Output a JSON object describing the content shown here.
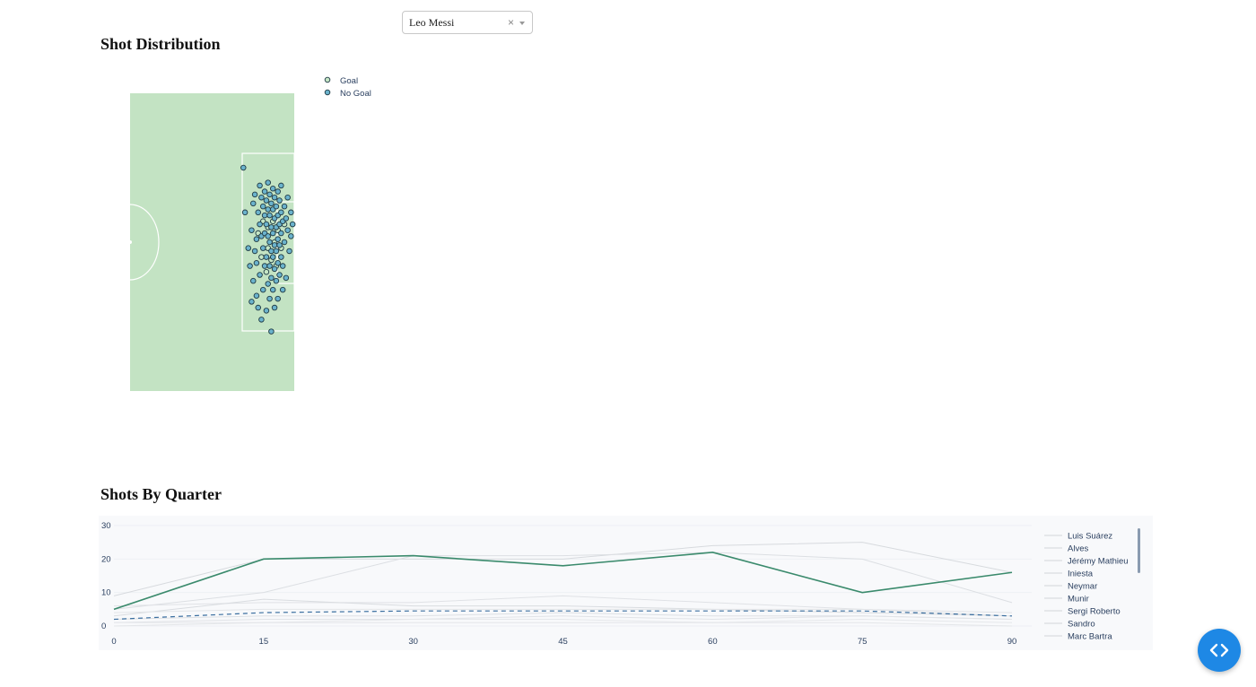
{
  "player_select": {
    "value": "Leo Messi",
    "clear_icon": "×"
  },
  "sections": {
    "shot_distribution_title": "Shot Distribution",
    "shots_by_quarter_title": "Shots By Quarter"
  },
  "colors": {
    "pitch": "#c3e3c3",
    "goal_marker": "#c5e6c5",
    "no_goal_marker": "#6bb3cd",
    "messi_line": "#3a8a6c",
    "dashed_line": "#3b6fa0",
    "plot_bg": "#f8f9fb"
  },
  "chart_data": [
    {
      "type": "scatter",
      "legend": [
        "Goal",
        "No Goal"
      ],
      "legend_position": "top-right",
      "series": [
        {
          "name": "Goal",
          "points": [
            [
              78,
              47
            ],
            [
              81,
              43
            ],
            [
              84,
              45
            ],
            [
              87,
              43
            ],
            [
              80,
              55
            ],
            [
              84,
              52
            ],
            [
              88,
              50
            ],
            [
              90,
              46
            ],
            [
              86,
              56
            ],
            [
              92,
              52
            ],
            [
              83,
              60
            ],
            [
              89,
              58
            ],
            [
              94,
              44
            ]
          ]
        },
        {
          "name": "No Goal",
          "points": [
            [
              69,
              25
            ],
            [
              70,
              40
            ],
            [
              72,
              52
            ],
            [
              73,
              58
            ],
            [
              74,
              46
            ],
            [
              74,
              70
            ],
            [
              75,
              37
            ],
            [
              75,
              63
            ],
            [
              76,
              34
            ],
            [
              76,
              53
            ],
            [
              77,
              49
            ],
            [
              77,
              57
            ],
            [
              77,
              68
            ],
            [
              78,
              40
            ],
            [
              78,
              72
            ],
            [
              79,
              31
            ],
            [
              79,
              44
            ],
            [
              79,
              61
            ],
            [
              80,
              35
            ],
            [
              80,
              48
            ],
            [
              80,
              76
            ],
            [
              81,
              38
            ],
            [
              81,
              52
            ],
            [
              81,
              66
            ],
            [
              82,
              33
            ],
            [
              82,
              41
            ],
            [
              82,
              47
            ],
            [
              82,
              58
            ],
            [
              83,
              36
            ],
            [
              83,
              44
            ],
            [
              83,
              55
            ],
            [
              83,
              73
            ],
            [
              84,
              30
            ],
            [
              84,
              39
            ],
            [
              84,
              48
            ],
            [
              84,
              64
            ],
            [
              85,
              34
            ],
            [
              85,
              41
            ],
            [
              85,
              50
            ],
            [
              85,
              58
            ],
            [
              85,
              69
            ],
            [
              86,
              37
            ],
            [
              86,
              45
            ],
            [
              86,
              53
            ],
            [
              86,
              62
            ],
            [
              86,
              80
            ],
            [
              87,
              32
            ],
            [
              87,
              39
            ],
            [
              87,
              47
            ],
            [
              87,
              55
            ],
            [
              87,
              66
            ],
            [
              88,
              35
            ],
            [
              88,
              42
            ],
            [
              88,
              51
            ],
            [
              88,
              59
            ],
            [
              88,
              72
            ],
            [
              89,
              38
            ],
            [
              89,
              45
            ],
            [
              89,
              53
            ],
            [
              89,
              63
            ],
            [
              90,
              33
            ],
            [
              90,
              41
            ],
            [
              90,
              49
            ],
            [
              90,
              57
            ],
            [
              90,
              69
            ],
            [
              91,
              36
            ],
            [
              91,
              44
            ],
            [
              91,
              51
            ],
            [
              91,
              61
            ],
            [
              92,
              31
            ],
            [
              92,
              40
            ],
            [
              92,
              47
            ],
            [
              92,
              55
            ],
            [
              93,
              43
            ],
            [
              93,
              58
            ],
            [
              93,
              66
            ],
            [
              94,
              38
            ],
            [
              94,
              50
            ],
            [
              95,
              42
            ],
            [
              95,
              62
            ],
            [
              96,
              35
            ],
            [
              96,
              46
            ],
            [
              97,
              53
            ],
            [
              98,
              40
            ],
            [
              98,
              48
            ],
            [
              99,
              44
            ]
          ]
        }
      ]
    },
    {
      "type": "line",
      "x": [
        0,
        15,
        30,
        45,
        60,
        75,
        90
      ],
      "ylim": [
        0,
        30
      ],
      "yticks": [
        0,
        10,
        20,
        30
      ],
      "legend_position": "right",
      "series": [
        {
          "name": "Leo Messi",
          "values": [
            5,
            20,
            21,
            18,
            22,
            10,
            16
          ],
          "highlight": true
        },
        {
          "name": "",
          "values": [
            2,
            4,
            4.5,
            4.5,
            4.5,
            4.5,
            3
          ],
          "dashed": true
        },
        {
          "name": "Luis Suárez",
          "values": [
            9,
            20,
            20,
            20,
            24,
            25,
            16
          ]
        },
        {
          "name": "Alves",
          "values": [
            5,
            10,
            21,
            21,
            22,
            20,
            7
          ]
        },
        {
          "name": "Jérémy Mathieu",
          "values": [
            6,
            7,
            7,
            9,
            7,
            5,
            4
          ]
        },
        {
          "name": "Iniesta",
          "values": [
            3,
            8,
            6,
            6,
            5,
            4,
            3
          ]
        },
        {
          "name": "Neymar",
          "values": [
            4,
            5,
            5,
            5,
            5,
            5,
            3
          ]
        },
        {
          "name": "Munir",
          "values": [
            2,
            3,
            3,
            4,
            3,
            3,
            2
          ]
        },
        {
          "name": "Sergi Roberto",
          "values": [
            1,
            2,
            2,
            3,
            2,
            3,
            2
          ]
        },
        {
          "name": "Sandro",
          "values": [
            1,
            1,
            2,
            2,
            1,
            2,
            1
          ]
        },
        {
          "name": "Marc Bartra",
          "values": [
            0,
            1,
            1,
            1,
            1,
            1,
            0
          ]
        }
      ]
    }
  ]
}
